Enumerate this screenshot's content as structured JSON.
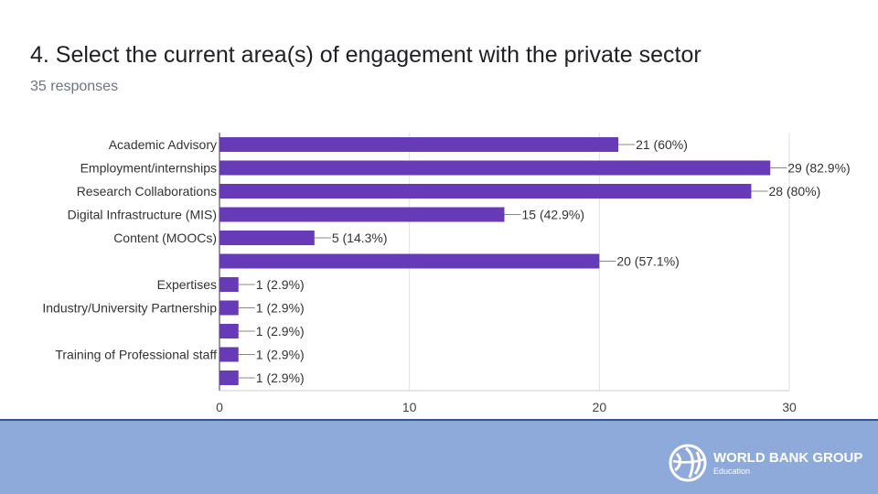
{
  "question": {
    "title": "4. Select the current area(s) of engagement with the private sector",
    "responses": "35 responses"
  },
  "chart_data": {
    "type": "bar",
    "orientation": "horizontal",
    "categories": [
      "Academic Advisory",
      "Employment/internships",
      "Research Collaborations",
      "Digital Infrastructure (MIS)",
      "Content (MOOCs)",
      "",
      "Expertises",
      "Industry/University Partnership",
      "",
      "Training of Professional staff",
      ""
    ],
    "values": [
      21,
      29,
      28,
      15,
      5,
      20,
      1,
      1,
      1,
      1,
      1
    ],
    "data_labels": [
      "21 (60%)",
      "29 (82.9%)",
      "28 (80%)",
      "15 (42.9%)",
      "5 (14.3%)",
      "20 (57.1%)",
      "1 (2.9%)",
      "1 (2.9%)",
      "1 (2.9%)",
      "1 (2.9%)",
      "1 (2.9%)"
    ],
    "xlim": [
      0,
      30
    ],
    "xticks": [
      0,
      10,
      20,
      30
    ],
    "grid": true,
    "bar_color": "#673ab7"
  },
  "footer": {
    "background_color": "#8eaadb",
    "logo_name": "WORLD BANK GROUP",
    "logo_sub": "Education"
  }
}
